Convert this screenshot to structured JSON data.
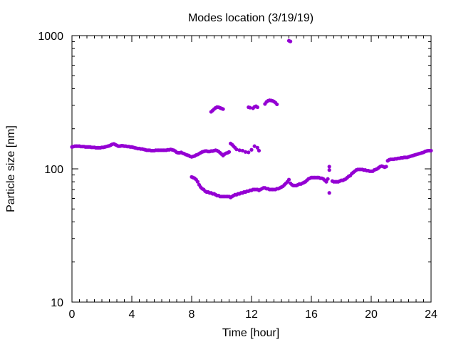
{
  "chart_data": {
    "type": "scatter",
    "title": "Modes location (3/19/19)",
    "xlabel": "Time [hour]",
    "ylabel": "Particle size [nm]",
    "xlim": [
      0,
      24
    ],
    "ylim": [
      10,
      1000
    ],
    "y_scale": "log",
    "x_ticks": [
      0,
      4,
      8,
      12,
      16,
      20,
      24
    ],
    "x_tick_labels": [
      "0",
      "4",
      "8",
      "12",
      "16",
      "20",
      "24"
    ],
    "y_ticks": [
      10,
      100,
      1000
    ],
    "y_tick_labels": [
      "10",
      "100",
      "1000"
    ],
    "grid": false,
    "legend": "none",
    "colors": {
      "series": "#9400d3",
      "axes": "#000000"
    },
    "series": [
      {
        "points": [
          [
            0.0,
            146
          ],
          [
            0.1,
            147
          ],
          [
            0.2,
            148
          ],
          [
            0.3,
            148
          ],
          [
            0.4,
            148
          ],
          [
            0.5,
            148
          ],
          [
            0.6,
            147
          ],
          [
            0.7,
            147
          ],
          [
            0.8,
            147
          ],
          [
            0.9,
            146
          ],
          [
            1.0,
            146
          ],
          [
            1.1,
            146
          ],
          [
            1.2,
            146
          ],
          [
            1.3,
            145
          ],
          [
            1.4,
            145
          ],
          [
            1.5,
            145
          ],
          [
            1.6,
            144
          ],
          [
            1.7,
            144
          ],
          [
            1.8,
            144
          ],
          [
            1.9,
            144
          ],
          [
            2.0,
            145
          ],
          [
            2.1,
            145
          ],
          [
            2.2,
            146
          ],
          [
            2.3,
            147
          ],
          [
            2.4,
            148
          ],
          [
            2.5,
            149
          ],
          [
            2.6,
            151
          ],
          [
            2.7,
            153
          ],
          [
            2.8,
            154
          ],
          [
            2.9,
            152
          ],
          [
            3.0,
            150
          ],
          [
            3.1,
            148
          ],
          [
            3.2,
            148
          ],
          [
            3.3,
            149
          ],
          [
            3.4,
            149
          ],
          [
            3.5,
            148
          ],
          [
            3.6,
            148
          ],
          [
            3.7,
            147
          ],
          [
            3.8,
            147
          ],
          [
            3.9,
            146
          ],
          [
            4.0,
            146
          ],
          [
            4.1,
            145
          ],
          [
            4.2,
            144
          ],
          [
            4.3,
            143
          ],
          [
            4.4,
            142
          ],
          [
            4.5,
            142
          ],
          [
            4.6,
            141
          ],
          [
            4.7,
            141
          ],
          [
            4.8,
            140
          ],
          [
            4.9,
            139
          ],
          [
            5.0,
            138
          ],
          [
            5.1,
            138
          ],
          [
            5.2,
            138
          ],
          [
            5.3,
            137
          ],
          [
            5.4,
            137
          ],
          [
            5.5,
            137
          ],
          [
            5.6,
            138
          ],
          [
            5.7,
            138
          ],
          [
            5.8,
            138
          ],
          [
            5.9,
            138
          ],
          [
            6.0,
            138
          ],
          [
            6.1,
            138
          ],
          [
            6.2,
            138
          ],
          [
            6.3,
            138
          ],
          [
            6.4,
            139
          ],
          [
            6.5,
            139
          ],
          [
            6.6,
            140
          ],
          [
            6.7,
            139
          ],
          [
            6.8,
            138
          ],
          [
            6.9,
            136
          ],
          [
            7.0,
            133
          ],
          [
            7.1,
            132
          ],
          [
            7.2,
            132
          ],
          [
            7.3,
            133
          ],
          [
            7.4,
            131
          ],
          [
            7.5,
            130
          ],
          [
            7.6,
            128
          ],
          [
            7.7,
            127
          ],
          [
            7.8,
            126
          ],
          [
            7.9,
            124
          ],
          [
            8.0,
            123
          ],
          [
            8.1,
            124
          ],
          [
            8.2,
            125
          ],
          [
            8.3,
            127
          ],
          [
            8.4,
            128
          ],
          [
            8.5,
            130
          ],
          [
            8.6,
            132
          ],
          [
            8.7,
            134
          ],
          [
            8.8,
            135
          ],
          [
            8.9,
            136
          ],
          [
            9.0,
            136
          ],
          [
            9.1,
            135
          ],
          [
            9.2,
            135
          ],
          [
            9.3,
            136
          ],
          [
            9.4,
            136
          ],
          [
            9.5,
            137
          ],
          [
            9.6,
            138
          ],
          [
            9.7,
            137
          ],
          [
            9.8,
            135
          ],
          [
            9.9,
            132
          ],
          [
            10.0,
            129
          ],
          [
            10.1,
            126
          ],
          [
            10.2,
            129
          ],
          [
            10.3,
            131
          ],
          [
            10.4,
            132
          ],
          [
            10.5,
            134
          ],
          [
            10.6,
            155
          ],
          [
            10.7,
            152
          ],
          [
            10.8,
            148
          ],
          [
            10.9,
            144
          ],
          [
            11.0,
            140
          ],
          [
            11.2,
            138
          ],
          [
            11.4,
            137
          ],
          [
            11.6,
            134
          ],
          [
            11.8,
            133
          ],
          [
            12.0,
            139
          ],
          [
            12.2,
            148
          ],
          [
            12.4,
            144
          ],
          [
            12.5,
            137
          ],
          [
            8.0,
            87
          ],
          [
            8.1,
            86
          ],
          [
            8.2,
            85
          ],
          [
            8.3,
            83
          ],
          [
            8.4,
            80
          ],
          [
            8.5,
            76
          ],
          [
            8.6,
            73
          ],
          [
            8.7,
            71
          ],
          [
            8.8,
            70
          ],
          [
            8.9,
            68
          ],
          [
            9.0,
            67
          ],
          [
            9.1,
            67
          ],
          [
            9.2,
            66
          ],
          [
            9.3,
            66
          ],
          [
            9.4,
            65
          ],
          [
            9.5,
            65
          ],
          [
            9.6,
            64
          ],
          [
            9.7,
            63
          ],
          [
            9.8,
            63
          ],
          [
            9.9,
            62
          ],
          [
            10.0,
            62
          ],
          [
            10.1,
            62
          ],
          [
            10.2,
            62
          ],
          [
            10.3,
            62
          ],
          [
            10.4,
            62
          ],
          [
            10.5,
            62
          ],
          [
            10.6,
            61
          ],
          [
            10.7,
            62
          ],
          [
            10.8,
            63
          ],
          [
            10.9,
            64
          ],
          [
            11.0,
            64
          ],
          [
            11.1,
            65
          ],
          [
            11.2,
            65
          ],
          [
            11.3,
            66
          ],
          [
            11.4,
            66
          ],
          [
            11.5,
            67
          ],
          [
            11.6,
            67
          ],
          [
            11.7,
            68
          ],
          [
            11.8,
            68
          ],
          [
            11.9,
            69
          ],
          [
            12.0,
            69
          ],
          [
            12.1,
            70
          ],
          [
            12.2,
            70
          ],
          [
            12.3,
            70
          ],
          [
            12.4,
            70
          ],
          [
            12.5,
            69
          ],
          [
            12.6,
            70
          ],
          [
            12.7,
            71
          ],
          [
            12.8,
            72
          ],
          [
            12.9,
            72
          ],
          [
            13.0,
            71
          ],
          [
            13.1,
            71
          ],
          [
            13.2,
            70
          ],
          [
            13.3,
            70
          ],
          [
            13.4,
            70
          ],
          [
            13.5,
            70
          ],
          [
            13.6,
            70
          ],
          [
            13.7,
            71
          ],
          [
            13.8,
            71
          ],
          [
            13.9,
            72
          ],
          [
            14.0,
            73
          ],
          [
            14.1,
            74
          ],
          [
            14.2,
            76
          ],
          [
            14.3,
            78
          ],
          [
            14.4,
            80
          ],
          [
            14.5,
            83
          ],
          [
            14.6,
            78
          ],
          [
            14.7,
            76
          ],
          [
            14.8,
            75
          ],
          [
            14.9,
            75
          ],
          [
            15.0,
            75
          ],
          [
            15.1,
            76
          ],
          [
            15.2,
            77
          ],
          [
            15.3,
            77
          ],
          [
            15.4,
            78
          ],
          [
            15.5,
            79
          ],
          [
            15.6,
            80
          ],
          [
            15.7,
            82
          ],
          [
            15.8,
            84
          ],
          [
            15.9,
            85
          ],
          [
            16.0,
            86
          ],
          [
            16.1,
            86
          ],
          [
            16.2,
            86
          ],
          [
            16.3,
            86
          ],
          [
            16.4,
            86
          ],
          [
            16.5,
            86
          ],
          [
            16.6,
            85
          ],
          [
            16.7,
            85
          ],
          [
            16.8,
            84
          ],
          [
            16.9,
            82
          ],
          [
            17.0,
            80
          ],
          [
            17.1,
            84
          ],
          [
            17.2,
            104
          ],
          [
            17.2,
            98
          ],
          [
            17.2,
            66
          ],
          [
            17.4,
            81
          ],
          [
            17.5,
            80
          ],
          [
            17.6,
            80
          ],
          [
            17.7,
            80
          ],
          [
            17.8,
            80
          ],
          [
            17.9,
            81
          ],
          [
            18.0,
            82
          ],
          [
            18.1,
            82
          ],
          [
            18.2,
            83
          ],
          [
            18.3,
            84
          ],
          [
            18.4,
            86
          ],
          [
            18.5,
            88
          ],
          [
            18.6,
            89
          ],
          [
            18.7,
            92
          ],
          [
            18.8,
            94
          ],
          [
            18.9,
            96
          ],
          [
            19.0,
            98
          ],
          [
            19.1,
            99
          ],
          [
            19.2,
            99
          ],
          [
            19.3,
            99
          ],
          [
            19.4,
            99
          ],
          [
            19.5,
            98
          ],
          [
            19.6,
            98
          ],
          [
            19.7,
            97
          ],
          [
            19.8,
            97
          ],
          [
            19.9,
            96
          ],
          [
            20.0,
            96
          ],
          [
            20.1,
            96
          ],
          [
            20.2,
            98
          ],
          [
            20.3,
            99
          ],
          [
            20.4,
            100
          ],
          [
            20.5,
            102
          ],
          [
            20.6,
            104
          ],
          [
            20.7,
            105
          ],
          [
            20.8,
            104
          ],
          [
            20.9,
            103
          ],
          [
            21.0,
            104
          ],
          [
            21.1,
            115
          ],
          [
            21.2,
            117
          ],
          [
            21.3,
            118
          ],
          [
            21.4,
            118
          ],
          [
            21.5,
            118
          ],
          [
            21.6,
            119
          ],
          [
            21.7,
            119
          ],
          [
            21.8,
            120
          ],
          [
            21.9,
            120
          ],
          [
            22.0,
            121
          ],
          [
            22.1,
            121
          ],
          [
            22.2,
            122
          ],
          [
            22.3,
            122
          ],
          [
            22.4,
            122
          ],
          [
            22.5,
            123
          ],
          [
            22.6,
            124
          ],
          [
            22.7,
            125
          ],
          [
            22.8,
            126
          ],
          [
            22.9,
            127
          ],
          [
            23.0,
            128
          ],
          [
            23.1,
            129
          ],
          [
            23.2,
            130
          ],
          [
            23.3,
            131
          ],
          [
            23.4,
            132
          ],
          [
            23.5,
            133
          ],
          [
            23.6,
            135
          ],
          [
            23.7,
            136
          ],
          [
            23.8,
            137
          ],
          [
            23.9,
            137
          ],
          [
            24.0,
            137
          ],
          [
            9.3,
            268
          ],
          [
            9.4,
            274
          ],
          [
            9.5,
            281
          ],
          [
            9.6,
            287
          ],
          [
            9.7,
            291
          ],
          [
            9.8,
            290
          ],
          [
            9.9,
            287
          ],
          [
            10.0,
            284
          ],
          [
            10.1,
            281
          ],
          [
            11.8,
            290
          ],
          [
            11.9,
            288
          ],
          [
            12.1,
            285
          ],
          [
            12.2,
            292
          ],
          [
            12.3,
            295
          ],
          [
            12.4,
            290
          ],
          [
            12.9,
            307
          ],
          [
            13.0,
            318
          ],
          [
            13.1,
            324
          ],
          [
            13.2,
            327
          ],
          [
            13.3,
            326
          ],
          [
            13.4,
            324
          ],
          [
            13.5,
            320
          ],
          [
            13.6,
            314
          ],
          [
            13.7,
            305
          ],
          [
            14.5,
            915
          ],
          [
            14.6,
            905
          ]
        ]
      }
    ]
  }
}
